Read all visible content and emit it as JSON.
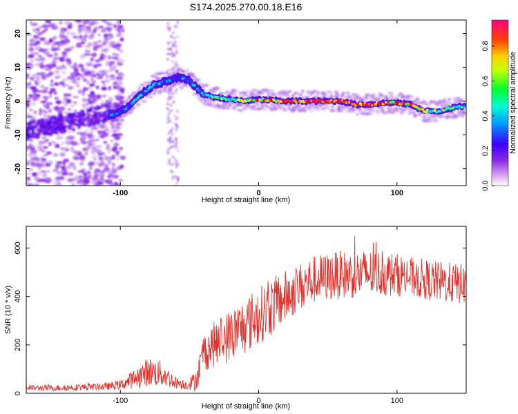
{
  "figure": {
    "title": "S174.2025.270.00.18.E16"
  },
  "chart_data": [
    {
      "type": "heatmap",
      "title": "S174.2025.270.00.18.E16",
      "xlabel": "Height of straight line (km)",
      "ylabel": "Frequency (Hz)",
      "xlim": [
        -168,
        150
      ],
      "ylim": [
        -25,
        24
      ],
      "xticks": [
        -100,
        0,
        100
      ],
      "xtick_labels": [
        "-100",
        "0",
        "100"
      ],
      "yticks": [
        20,
        10,
        0,
        -10,
        -20
      ],
      "ytick_labels": [
        "20",
        "10",
        "0",
        "-10",
        "-20"
      ],
      "colorbar": {
        "label": "Normalized spectral amplitude",
        "range": [
          0.0,
          0.95
        ],
        "ticks": [
          0.0,
          0.2,
          0.4,
          0.6,
          0.8
        ],
        "tick_labels": [
          "0.0",
          "0.2",
          "0.4",
          "0.6",
          "0.8"
        ],
        "colormap": [
          "#e6c8f5",
          "#9b4fe6",
          "#6a00e0",
          "#2a2aff",
          "#00c8ff",
          "#00ff80",
          "#ffff00",
          "#ff8000",
          "#ff0000",
          "#ff0080"
        ]
      },
      "ridge": {
        "height_km": [
          -105,
          -95,
          -85,
          -75,
          -65,
          -58,
          -50,
          -45,
          -40,
          -30,
          -20,
          -10,
          0,
          20,
          40,
          60,
          70,
          80,
          90,
          100,
          110,
          120,
          130,
          140,
          148
        ],
        "frequency_hz": [
          -4,
          -2,
          2,
          5,
          6,
          7,
          6,
          4,
          2,
          1,
          0.5,
          0,
          0.5,
          0,
          0,
          0,
          -1,
          -1,
          -0.5,
          -0.5,
          -1,
          -3,
          -3,
          -2,
          -1.5
        ],
        "amplitude": [
          0.35,
          0.4,
          0.45,
          0.45,
          0.4,
          0.35,
          0.4,
          0.4,
          0.45,
          0.5,
          0.55,
          0.6,
          0.75,
          0.8,
          0.85,
          0.85,
          0.8,
          0.85,
          0.8,
          0.75,
          0.7,
          0.65,
          0.6,
          0.55,
          0.5
        ]
      }
    },
    {
      "type": "line",
      "xlabel": "Height of straight line (km)",
      "ylabel": "SNR (10 * v/v)",
      "xlim": [
        -168,
        150
      ],
      "ylim": [
        0,
        690
      ],
      "xticks": [
        -100,
        0,
        100
      ],
      "xtick_labels": [
        "-100",
        "0",
        "100"
      ],
      "yticks": [
        0,
        200,
        400,
        600
      ],
      "ytick_labels": [
        "0",
        "200",
        "400",
        "600"
      ],
      "color": "#e8302a",
      "series": [
        {
          "name": "SNR",
          "x": [
            -168,
            -150,
            -130,
            -110,
            -100,
            -90,
            -80,
            -70,
            -60,
            -52,
            -46,
            -42,
            -40,
            -35,
            -30,
            -20,
            -10,
            0,
            10,
            20,
            30,
            40,
            50,
            60,
            70,
            80,
            90,
            100,
            110,
            120,
            130,
            140,
            150
          ],
          "mean": [
            22,
            22,
            25,
            28,
            35,
            60,
            90,
            80,
            45,
            35,
            50,
            110,
            170,
            190,
            210,
            240,
            280,
            320,
            360,
            400,
            440,
            470,
            480,
            490,
            490,
            495,
            495,
            490,
            480,
            470,
            460,
            455,
            450
          ],
          "spread": [
            12,
            12,
            14,
            15,
            20,
            40,
            60,
            55,
            25,
            20,
            40,
            70,
            80,
            90,
            100,
            110,
            120,
            120,
            120,
            110,
            100,
            100,
            100,
            100,
            100,
            100,
            95,
            90,
            85,
            85,
            85,
            85,
            85
          ],
          "peak_value": 685
        }
      ]
    }
  ]
}
